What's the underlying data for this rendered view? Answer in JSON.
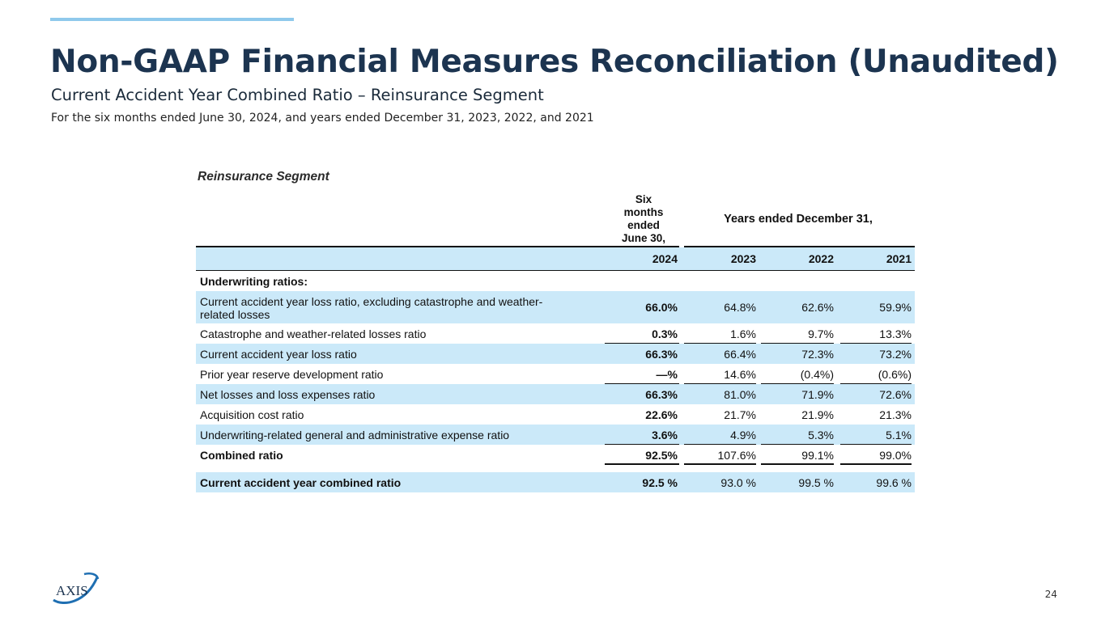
{
  "header": {
    "title": "Non-GAAP Financial Measures Reconciliation (Unaudited)",
    "subtitle": "Current Accident Year Combined Ratio – Reinsurance Segment",
    "note": "For the six months ended June 30, 2024, and years ended December 31, 2023, 2022, and 2021"
  },
  "table": {
    "segment_title": "Reinsurance Segment",
    "six_months_header": [
      "Six",
      "months",
      "ended",
      "June 30,"
    ],
    "years_header": "Years ended December 31,",
    "columns": [
      "2024",
      "2023",
      "2022",
      "2021"
    ],
    "section_label": "Underwriting ratios:",
    "rows": [
      {
        "label": "Current accident year loss ratio, excluding catastrophe and weather-related losses",
        "label_line1": "Current accident year loss ratio, excluding catastrophe and weather-",
        "label_line2": "related losses",
        "values": [
          "66.0%",
          "64.8%",
          "62.6%",
          "59.9%"
        ]
      },
      {
        "label": "Catastrophe and weather-related losses ratio",
        "values": [
          "0.3%",
          "1.6%",
          "9.7%",
          "13.3%"
        ]
      },
      {
        "label": "Current accident year loss ratio",
        "values": [
          "66.3%",
          "66.4%",
          "72.3%",
          "73.2%"
        ]
      },
      {
        "label": "Prior year reserve development ratio",
        "values": [
          "—%",
          "14.6%",
          "(0.4%)",
          "(0.6%)"
        ]
      },
      {
        "label": "Net losses and loss expenses ratio",
        "values": [
          "66.3%",
          "81.0%",
          "71.9%",
          "72.6%"
        ]
      },
      {
        "label": "Acquisition cost ratio",
        "values": [
          "22.6%",
          "21.7%",
          "21.9%",
          "21.3%"
        ]
      },
      {
        "label": "Underwriting-related general and administrative expense ratio",
        "values": [
          "3.6%",
          "4.9%",
          "5.3%",
          "5.1%"
        ]
      },
      {
        "label": "Combined ratio",
        "values": [
          "92.5%",
          "107.6%",
          "99.1%",
          "99.0%"
        ]
      },
      {
        "label": "Current accident year combined ratio",
        "values": [
          "92.5 %",
          "93.0 %",
          "99.5 %",
          "99.6 %"
        ]
      }
    ]
  },
  "footer": {
    "logo_text": "AXIS",
    "page_number": "24"
  },
  "colors": {
    "accent": "#8fc9ec",
    "title": "#1c3450",
    "row_shade": "#cbe9f9",
    "logo_blue": "#1f6fb2"
  }
}
